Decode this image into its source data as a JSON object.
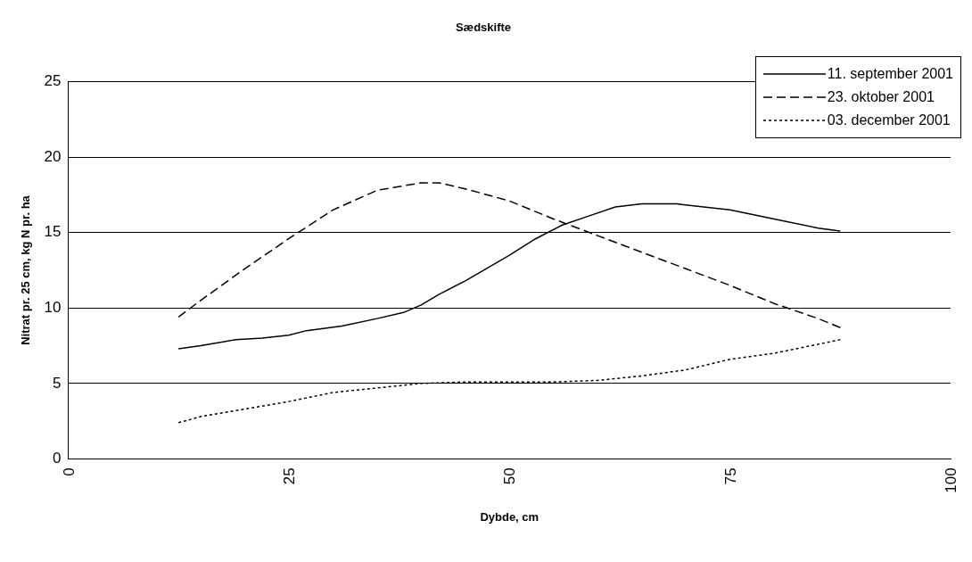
{
  "chart_data": {
    "type": "line",
    "title": "Sædskifte",
    "xlabel": "Dybde, cm",
    "ylabel": "Nitrat pr. 25 cm, kg N pr. ha",
    "xlim": [
      0,
      100
    ],
    "xticks": [
      0,
      25,
      50,
      75,
      100
    ],
    "ylim": [
      0,
      25
    ],
    "yticks": [
      0,
      5,
      10,
      15,
      20,
      25
    ],
    "grid": "y",
    "legend": "top right",
    "marker": "none",
    "series": [
      {
        "name": "11. september 2001",
        "color": "#000000",
        "line_style": "solid",
        "x": [
          12.5,
          15,
          19,
          22,
          25,
          27,
          31,
          35,
          38,
          40,
          42,
          45,
          50,
          53,
          56,
          59,
          62,
          65,
          69,
          75,
          80,
          85,
          87.5
        ],
        "values": [
          7.3,
          7.5,
          7.9,
          8.0,
          8.2,
          8.5,
          8.8,
          9.3,
          9.7,
          10.2,
          10.9,
          11.8,
          13.5,
          14.6,
          15.5,
          16.1,
          16.7,
          16.9,
          16.9,
          16.5,
          15.9,
          15.3,
          15.1
        ]
      },
      {
        "name": "23. oktober 2001",
        "color": "#000000",
        "line_style": "dashed",
        "x": [
          12.5,
          15,
          20,
          25,
          30,
          35,
          40,
          42,
          45,
          50,
          55,
          60,
          65,
          70,
          75,
          80,
          85,
          87.5
        ],
        "values": [
          9.4,
          10.5,
          12.6,
          14.6,
          16.5,
          17.8,
          18.3,
          18.3,
          17.9,
          17.1,
          15.9,
          14.8,
          13.7,
          12.6,
          11.5,
          10.3,
          9.3,
          8.7
        ]
      },
      {
        "name": "03. december 2001",
        "color": "#000000",
        "line_style": "dotted",
        "x": [
          12.5,
          15,
          20,
          25,
          30,
          35,
          40,
          45,
          50,
          55,
          60,
          65,
          70,
          75,
          80,
          85,
          87.5
        ],
        "values": [
          2.4,
          2.8,
          3.3,
          3.8,
          4.4,
          4.7,
          5.0,
          5.1,
          5.1,
          5.1,
          5.2,
          5.5,
          5.9,
          6.6,
          7.0,
          7.6,
          7.9
        ]
      }
    ]
  }
}
